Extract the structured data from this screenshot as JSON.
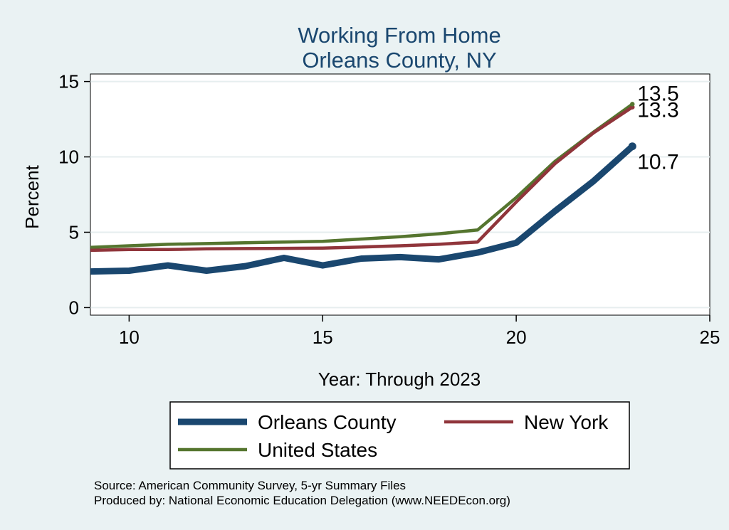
{
  "chart_data": {
    "type": "line",
    "title": [
      "Working From Home",
      "Orleans County, NY"
    ],
    "xlabel": "Year: Through 2023",
    "ylabel": "Percent",
    "xlim": [
      9,
      25
    ],
    "ylim": [
      -0.5,
      15.5
    ],
    "xticks": [
      10,
      15,
      20,
      25
    ],
    "yticks": [
      0,
      5,
      10,
      15
    ],
    "grid": "horizontal",
    "legend_position": "bottom",
    "series": [
      {
        "name": "Orleans County",
        "color": "#1a476f",
        "x": [
          9,
          10,
          11,
          12,
          13,
          14,
          15,
          16,
          17,
          18,
          19,
          20,
          21,
          22,
          23
        ],
        "values": [
          2.4,
          2.45,
          2.8,
          2.45,
          2.75,
          3.3,
          2.8,
          3.25,
          3.35,
          3.2,
          3.65,
          4.3,
          6.4,
          8.4,
          10.7
        ],
        "end_label": "10.7"
      },
      {
        "name": "New York",
        "color": "#90353b",
        "x": [
          9,
          10,
          11,
          12,
          13,
          14,
          15,
          16,
          17,
          18,
          19,
          20,
          21,
          22,
          23
        ],
        "values": [
          3.8,
          3.85,
          3.85,
          3.9,
          3.92,
          3.93,
          3.95,
          4.02,
          4.1,
          4.2,
          4.35,
          7.0,
          9.55,
          11.6,
          13.3
        ],
        "end_label": "13.3"
      },
      {
        "name": "United States",
        "color": "#55752f",
        "x": [
          9,
          10,
          11,
          12,
          13,
          14,
          15,
          16,
          17,
          18,
          19,
          20,
          21,
          22,
          23
        ],
        "values": [
          4.0,
          4.1,
          4.2,
          4.25,
          4.3,
          4.35,
          4.4,
          4.55,
          4.7,
          4.9,
          5.15,
          7.3,
          9.7,
          11.65,
          13.5
        ],
        "end_label": "13.5"
      }
    ]
  },
  "footer": {
    "source": "Source: American Community Survey, 5-yr Summary Files",
    "produced": "Produced by: National Economic Education Delegation (www.NEEDEcon.org)"
  }
}
